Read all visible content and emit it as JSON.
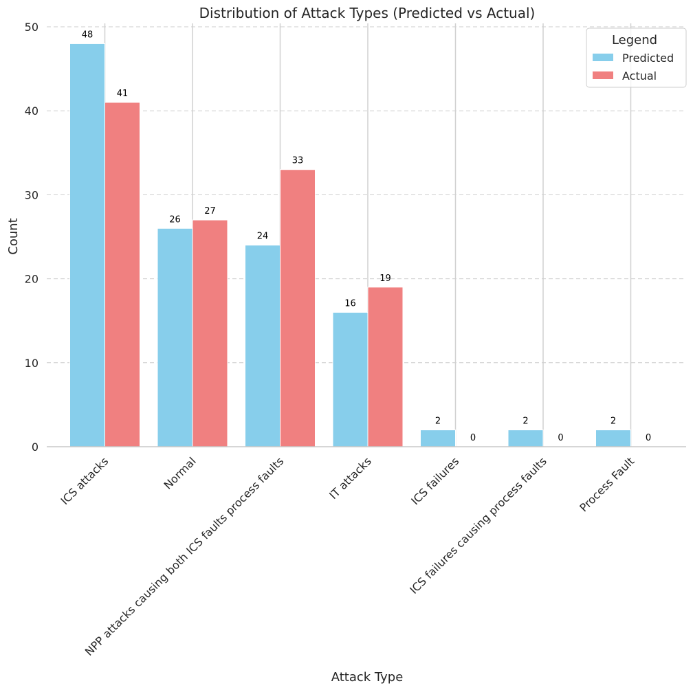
{
  "chart_data": {
    "type": "bar",
    "title": "Distribution of Attack Types (Predicted vs Actual)",
    "xlabel": "Attack Type",
    "ylabel": "Count",
    "ylim": [
      0,
      50
    ],
    "yticks": [
      0,
      10,
      20,
      30,
      40,
      50
    ],
    "categories": [
      "ICS attacks",
      "Normal",
      "NPP attacks causing both ICS faults process faults",
      "IT attacks",
      "ICS failures",
      "ICS failures causing process faults",
      "Process Fault"
    ],
    "series": [
      {
        "name": "Predicted",
        "color": "#87ceeb",
        "values": [
          48,
          26,
          24,
          16,
          2,
          2,
          2
        ]
      },
      {
        "name": "Actual",
        "color": "#f08080",
        "values": [
          41,
          27,
          33,
          19,
          0,
          0,
          0
        ]
      }
    ],
    "grid": "horizontal dashed",
    "legend": {
      "title": "Legend",
      "placement": "top-right"
    },
    "x_label_rotation": "45 degrees"
  }
}
